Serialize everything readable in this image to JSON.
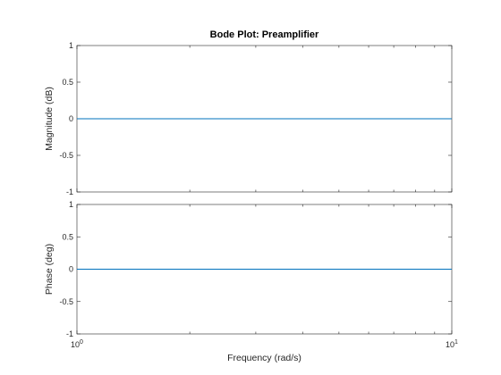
{
  "chart_data": [
    {
      "type": "line",
      "title": "Bode Plot: Preamplifier",
      "xlabel": "",
      "ylabel": "Magnitude (dB)",
      "xscale": "log",
      "xlim": [
        1,
        10
      ],
      "ylim": [
        -1,
        1
      ],
      "yticks": [
        1,
        0.5,
        0,
        -0.5,
        -1
      ],
      "ytick_labels": [
        "1",
        "0.5",
        "0",
        "-0.5",
        "-1"
      ],
      "grid": false,
      "series": [
        {
          "x": [
            1,
            10
          ],
          "y": [
            0,
            0
          ],
          "color": "#0072bd"
        }
      ]
    },
    {
      "type": "line",
      "title": "",
      "xlabel": "Frequency  (rad/s)",
      "ylabel": "Phase (deg)",
      "xscale": "log",
      "xlim": [
        1,
        10
      ],
      "ylim": [
        -1,
        1
      ],
      "yticks": [
        1,
        0.5,
        0,
        -0.5,
        -1
      ],
      "ytick_labels": [
        "1",
        "0.5",
        "0",
        "-0.5",
        "-1"
      ],
      "xtick_labels": [
        {
          "base": "10",
          "exp": "0"
        },
        {
          "base": "10",
          "exp": "1"
        }
      ],
      "grid": false,
      "series": [
        {
          "x": [
            1,
            10
          ],
          "y": [
            0,
            0
          ],
          "color": "#0072bd"
        }
      ]
    }
  ]
}
